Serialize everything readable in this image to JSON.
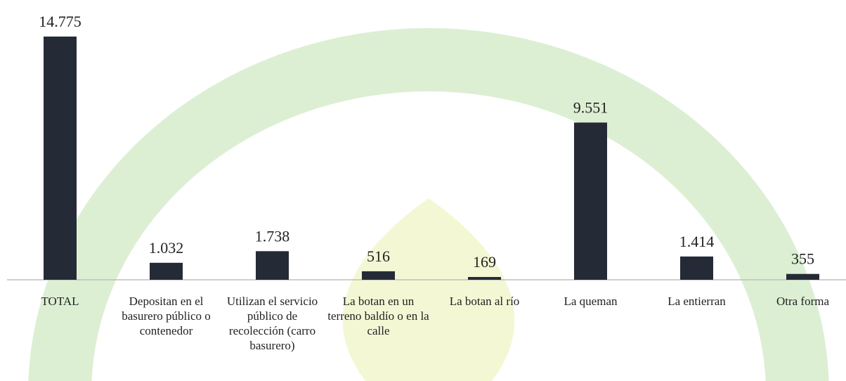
{
  "chart_data": {
    "type": "bar",
    "categories": [
      "TOTAL",
      "Depositan en el basurero público o contenedor",
      "Utilizan el servicio público de recolección (carro basurero)",
      "La botan en un terreno baldío o en la calle",
      "La botan al río",
      "La queman",
      "La entierran",
      "Otra forma"
    ],
    "values": [
      14775,
      1032,
      1738,
      516,
      169,
      9551,
      1414,
      355
    ],
    "value_labels": [
      "14.775",
      "1.032",
      "1.738",
      "516",
      "169",
      "9.551",
      "1.414",
      "355"
    ],
    "color": "#252b36"
  }
}
